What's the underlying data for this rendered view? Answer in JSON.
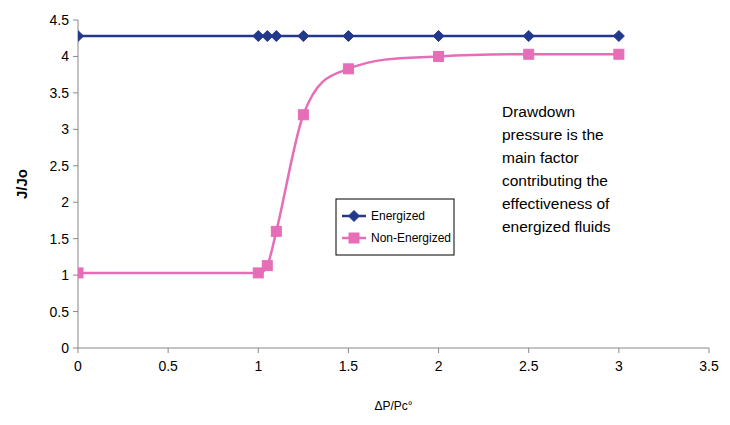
{
  "chart_data": {
    "type": "line",
    "x_label": "ΔP/Pc°",
    "y_label": "J/Jo",
    "annotation": [
      "Drawdown",
      "pressure is the",
      "main factor",
      "contributing the",
      "effectiveness of",
      "energized fluids"
    ],
    "xlim": [
      0,
      3.5
    ],
    "xticks": [
      0,
      0.5,
      1,
      1.5,
      2,
      2.5,
      3,
      3.5
    ],
    "ylim": [
      0,
      4.5
    ],
    "yticks": [
      0,
      0.5,
      1,
      1.5,
      2,
      2.5,
      3,
      3.5,
      4,
      4.5
    ],
    "grid": false,
    "legend": "center",
    "series": [
      {
        "name": "Energized",
        "color": "#22388c",
        "marker": "diamond",
        "line_style": "solid",
        "x": [
          0,
          1,
          1.05,
          1.1,
          1.25,
          1.5,
          2,
          2.5,
          3
        ],
        "values": [
          4.28,
          4.28,
          4.28,
          4.28,
          4.28,
          4.28,
          4.28,
          4.28,
          4.28
        ]
      },
      {
        "name": "Non-Energized",
        "color": "#e66db7",
        "marker": "square",
        "line_style": "smooth",
        "x": [
          0,
          1,
          1.05,
          1.1,
          1.25,
          1.5,
          2,
          2.5,
          3
        ],
        "values": [
          1.03,
          1.03,
          1.13,
          1.6,
          3.2,
          3.83,
          4.0,
          4.03,
          4.03
        ]
      }
    ]
  }
}
